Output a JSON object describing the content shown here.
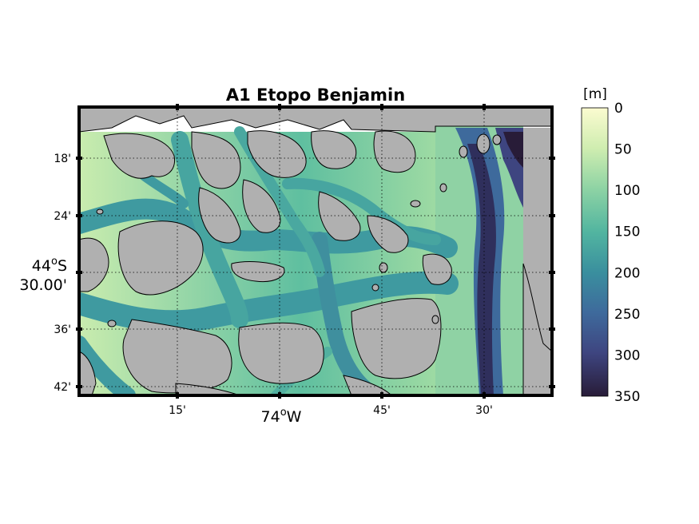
{
  "map": {
    "title": "A1 Etopo Benjamin",
    "lon_ticks": [
      "15'",
      "74",
      "45'",
      "30'"
    ],
    "lon_major_suffix": "W",
    "lat_ticks": [
      "18'",
      "24'",
      "36'",
      "42'"
    ],
    "lat_major_line1": "44",
    "lat_major_suffix": "S",
    "lat_major_line2": "30.00'",
    "degree_symbol": "o",
    "colors": {
      "land": "#b0b0b0",
      "coastline": "#000000",
      "deep": "#2a1f3d",
      "shallow": "#f7f7cc"
    }
  },
  "colorbar": {
    "unit": "[m]",
    "ticks": [
      "0",
      "50",
      "100",
      "150",
      "200",
      "250",
      "300",
      "350"
    ],
    "colormap": "deep"
  }
}
